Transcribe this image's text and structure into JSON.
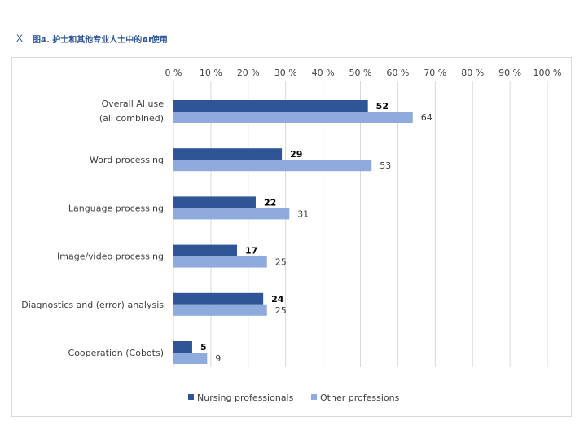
{
  "header": {
    "icon": "close-icon",
    "close_glyph": "X",
    "title": "图4. 护士和其他专业人士中的AI使用"
  },
  "colors": {
    "nursing": "#2f5597",
    "other": "#8faadc",
    "highlight_label": "#ff0000",
    "grid": "#d9d9d9",
    "text": "#404040"
  },
  "chart_data": {
    "type": "bar",
    "orientation": "horizontal",
    "title": "",
    "xlabel": "",
    "ylabel": "",
    "xlim": [
      0,
      100
    ],
    "x_ticks": [
      "0 %",
      "10 %",
      "20 %",
      "30 %",
      "40 %",
      "50 %",
      "60 %",
      "70 %",
      "80 %",
      "90 %",
      "100 %"
    ],
    "x_tick_values": [
      0,
      10,
      20,
      30,
      40,
      50,
      60,
      70,
      80,
      90,
      100
    ],
    "grid": true,
    "legend_position": "bottom",
    "categories": [
      [
        "Overall AI use",
        "(all combined)"
      ],
      [
        "Word processing"
      ],
      [
        "Language processing"
      ],
      [
        "Image/video processing"
      ],
      [
        "Diagnostics and (error) analysis"
      ],
      [
        "Cooperation (Cobots)"
      ]
    ],
    "series": [
      {
        "name": "Nursing professionals",
        "color": "#2f5597",
        "values": [
          52,
          29,
          22,
          17,
          24,
          5
        ],
        "label_colors": [
          "#000000",
          "#000000",
          "#000000",
          "#ff0000",
          "#000000",
          "#ff0000"
        ]
      },
      {
        "name": "Other professions",
        "color": "#8faadc",
        "values": [
          64,
          53,
          31,
          25,
          25,
          9
        ]
      }
    ]
  }
}
